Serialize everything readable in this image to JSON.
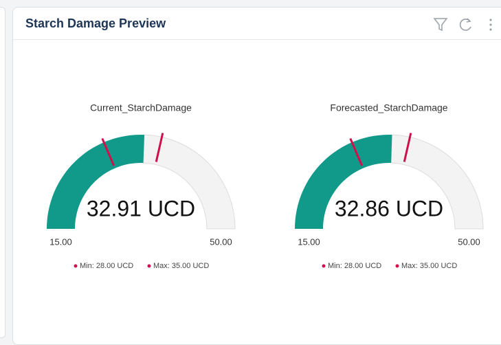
{
  "header": {
    "title": "Starch Damage Preview"
  },
  "chart_data": [
    {
      "type": "gauge",
      "title": "Current_StarchDamage",
      "values": [
        32.91
      ],
      "value_labels": [
        "32.91 UCD"
      ],
      "color": "#11998a",
      "ylim": [
        15,
        50
      ],
      "yticks": [
        {
          "value": 15,
          "label": "15.00"
        },
        {
          "value": 50,
          "label": "50.00"
        }
      ],
      "markers": [
        {
          "name": "Min: 28.00 UCD",
          "value": 28,
          "color": "#d0104c"
        },
        {
          "name": "Max: 35.00 UCD",
          "value": 35,
          "color": "#d0104c"
        }
      ]
    },
    {
      "type": "gauge",
      "title": "Forecasted_StarchDamage",
      "values": [
        32.86
      ],
      "value_labels": [
        "32.86 UCD"
      ],
      "color": "#11998a",
      "ylim": [
        15,
        50
      ],
      "yticks": [
        {
          "value": 15,
          "label": "15.00"
        },
        {
          "value": 50,
          "label": "50.00"
        }
      ],
      "markers": [
        {
          "name": "Min: 28.00 UCD",
          "value": 28,
          "color": "#d0104c"
        },
        {
          "name": "Max: 35.00 UCD",
          "value": 35,
          "color": "#d0104c"
        }
      ]
    }
  ]
}
